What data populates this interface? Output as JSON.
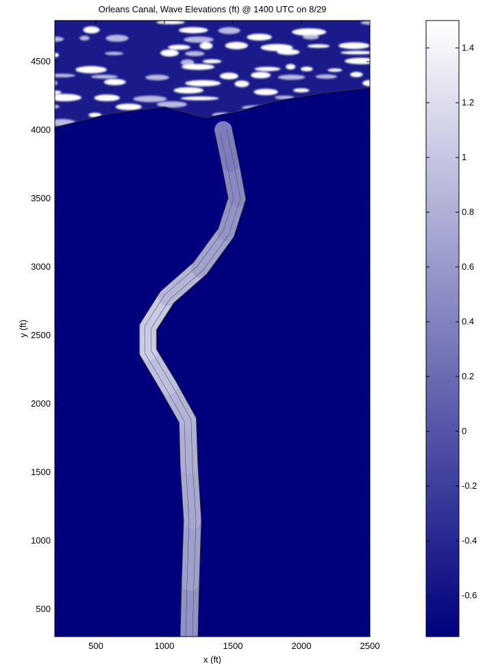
{
  "chart_data": {
    "type": "heatmap",
    "title": "Orleans Canal, Wave Elevations (ft) @ 1400 UTC on 8/29",
    "xlabel": "x (ft)",
    "ylabel": "y (ft)",
    "xlim": [
      200,
      2500
    ],
    "ylim": [
      300,
      4800
    ],
    "x_ticks": [
      500,
      1000,
      1500,
      2000,
      2500
    ],
    "y_ticks": [
      500,
      1000,
      1500,
      2000,
      2500,
      3000,
      3500,
      4000,
      4500
    ],
    "colorbar": {
      "range": [
        -0.75,
        1.5
      ],
      "ticks": [
        -0.6,
        -0.4,
        -0.2,
        0,
        0.2,
        0.4,
        0.6,
        0.8,
        1,
        1.2,
        1.4
      ],
      "colors": [
        "#00007d",
        "#ffffff"
      ]
    },
    "background_value": -0.75,
    "canal_centerline": [
      {
        "x": 1180,
        "y": 300
      },
      {
        "x": 1190,
        "y": 700
      },
      {
        "x": 1205,
        "y": 1150
      },
      {
        "x": 1180,
        "y": 1550
      },
      {
        "x": 1170,
        "y": 1880
      },
      {
        "x": 1030,
        "y": 2130
      },
      {
        "x": 880,
        "y": 2380
      },
      {
        "x": 880,
        "y": 2560
      },
      {
        "x": 1020,
        "y": 2780
      },
      {
        "x": 1260,
        "y": 2990
      },
      {
        "x": 1450,
        "y": 3250
      },
      {
        "x": 1530,
        "y": 3500
      },
      {
        "x": 1480,
        "y": 3760
      },
      {
        "x": 1430,
        "y": 4000
      }
    ],
    "canal_values": [
      0.45,
      0.6,
      0.7,
      0.75,
      0.8,
      0.85,
      1.0,
      1.1,
      0.95,
      0.75,
      0.6,
      0.5,
      0.4,
      0.3
    ],
    "lake_shoreline": [
      {
        "x": 200,
        "y": 4020
      },
      {
        "x": 600,
        "y": 4120
      },
      {
        "x": 1000,
        "y": 4170
      },
      {
        "x": 1300,
        "y": 4090
      },
      {
        "x": 1550,
        "y": 4140
      },
      {
        "x": 1800,
        "y": 4210
      },
      {
        "x": 2150,
        "y": 4270
      },
      {
        "x": 2500,
        "y": 4310
      }
    ]
  }
}
